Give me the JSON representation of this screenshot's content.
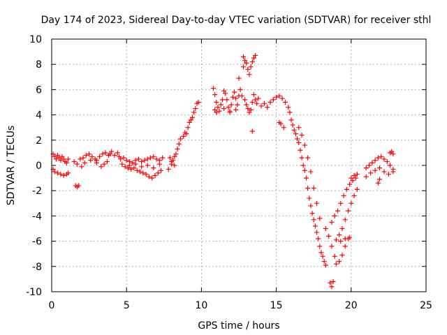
{
  "chart_data": {
    "type": "scatter",
    "title": "Day 174 of 2023, Sidereal Day-to-day VTEC variation (SDTVAR) for receiver sthl",
    "xlabel": "GPS time / hours",
    "ylabel": "SDTVAR / TECUs",
    "xlim": [
      0,
      25
    ],
    "ylim": [
      -10,
      10
    ],
    "xticks": [
      0,
      5,
      10,
      15,
      20,
      25
    ],
    "yticks": [
      -10,
      -8,
      -6,
      -4,
      -2,
      0,
      2,
      4,
      6,
      8,
      10
    ],
    "xtick_labels": [
      "0",
      "5",
      "10",
      "15",
      "20",
      "25"
    ],
    "ytick_labels": [
      "-10",
      "-8",
      "-6",
      "-4",
      "-2",
      "0",
      "2",
      "4",
      "6",
      "8",
      "10"
    ],
    "grid": true,
    "marker": "+",
    "color": "#ff0000",
    "series": [
      {
        "name": "sthl",
        "points": [
          [
            0.1,
            0.9
          ],
          [
            0.2,
            0.7
          ],
          [
            0.3,
            0.5
          ],
          [
            0.4,
            0.8
          ],
          [
            0.5,
            0.6
          ],
          [
            0.6,
            0.4
          ],
          [
            0.7,
            0.7
          ],
          [
            0.8,
            0.5
          ],
          [
            0.9,
            0.3
          ],
          [
            1.0,
            0.2
          ],
          [
            1.1,
            0.5
          ],
          [
            0.1,
            -0.3
          ],
          [
            0.2,
            -0.5
          ],
          [
            0.4,
            -0.6
          ],
          [
            0.6,
            -0.7
          ],
          [
            0.8,
            -0.8
          ],
          [
            1.0,
            -0.7
          ],
          [
            1.1,
            -0.6
          ],
          [
            1.6,
            -1.6
          ],
          [
            1.7,
            -1.7
          ],
          [
            1.8,
            -1.6
          ],
          [
            1.5,
            0.3
          ],
          [
            1.7,
            0.1
          ],
          [
            1.9,
            0.5
          ],
          [
            2.1,
            0.6
          ],
          [
            2.3,
            0.8
          ],
          [
            2.5,
            0.9
          ],
          [
            2.7,
            0.7
          ],
          [
            2.9,
            0.5
          ],
          [
            3.0,
            0.4
          ],
          [
            3.2,
            0.7
          ],
          [
            3.4,
            0.9
          ],
          [
            3.6,
            1.0
          ],
          [
            3.8,
            0.8
          ],
          [
            2.0,
            -0.1
          ],
          [
            2.2,
            0.2
          ],
          [
            2.6,
            0.4
          ],
          [
            3.0,
            0.2
          ],
          [
            3.3,
            -0.1
          ],
          [
            3.5,
            0.1
          ],
          [
            3.7,
            0.3
          ],
          [
            3.9,
            0.9
          ],
          [
            4.0,
            1.1
          ],
          [
            4.2,
            0.8
          ],
          [
            4.4,
            1.0
          ],
          [
            4.5,
            0.7
          ],
          [
            4.6,
            0.5
          ],
          [
            4.8,
            0.6
          ],
          [
            5.0,
            0.4
          ],
          [
            5.2,
            0.3
          ],
          [
            5.4,
            0.2
          ],
          [
            5.6,
            0.4
          ],
          [
            5.8,
            0.5
          ],
          [
            6.0,
            0.3
          ],
          [
            6.2,
            0.4
          ],
          [
            6.4,
            0.5
          ],
          [
            6.6,
            0.6
          ],
          [
            6.8,
            0.7
          ],
          [
            7.0,
            0.5
          ],
          [
            7.2,
            0.4
          ],
          [
            7.4,
            0.6
          ],
          [
            4.7,
            0.1
          ],
          [
            4.9,
            -0.1
          ],
          [
            5.1,
            -0.2
          ],
          [
            5.3,
            -0.3
          ],
          [
            5.5,
            -0.2
          ],
          [
            5.7,
            -0.4
          ],
          [
            5.9,
            -0.5
          ],
          [
            6.1,
            -0.6
          ],
          [
            6.3,
            -0.7
          ],
          [
            6.5,
            -0.9
          ],
          [
            6.7,
            -1.0
          ],
          [
            6.9,
            -0.8
          ],
          [
            7.1,
            -0.6
          ],
          [
            7.3,
            -0.4
          ],
          [
            5.2,
            0.0
          ],
          [
            5.6,
            0.1
          ],
          [
            6.0,
            -0.1
          ],
          [
            6.4,
            0.0
          ],
          [
            6.8,
            -0.2
          ],
          [
            7.2,
            0.1
          ],
          [
            7.8,
            -0.3
          ],
          [
            8.0,
            0.1
          ],
          [
            8.1,
            0.4
          ],
          [
            8.2,
            0.7
          ],
          [
            8.3,
            0.9
          ],
          [
            8.4,
            1.3
          ],
          [
            8.5,
            1.7
          ],
          [
            8.6,
            2.1
          ],
          [
            7.9,
            0.6
          ],
          [
            8.0,
            0.3
          ],
          [
            8.2,
            0.0
          ],
          [
            8.8,
            2.3
          ],
          [
            8.9,
            2.6
          ],
          [
            9.0,
            2.5
          ],
          [
            9.1,
            3.0
          ],
          [
            9.2,
            3.4
          ],
          [
            9.3,
            3.6
          ],
          [
            9.4,
            3.8
          ],
          [
            9.5,
            4.2
          ],
          [
            9.6,
            4.5
          ],
          [
            9.7,
            4.9
          ],
          [
            9.8,
            5.0
          ],
          [
            10.8,
            6.1
          ],
          [
            10.9,
            5.6
          ],
          [
            11.0,
            5.0
          ],
          [
            11.1,
            4.6
          ],
          [
            11.2,
            4.3
          ],
          [
            11.3,
            4.8
          ],
          [
            11.4,
            5.2
          ],
          [
            11.5,
            5.9
          ],
          [
            11.6,
            5.7
          ],
          [
            11.7,
            5.2
          ],
          [
            11.8,
            4.6
          ],
          [
            11.9,
            4.3
          ],
          [
            12.0,
            4.8
          ],
          [
            12.1,
            5.4
          ],
          [
            12.2,
            5.8
          ],
          [
            12.3,
            5.3
          ],
          [
            12.4,
            4.8
          ],
          [
            12.5,
            5.5
          ],
          [
            12.6,
            6.0
          ],
          [
            12.7,
            5.5
          ],
          [
            10.9,
            4.4
          ],
          [
            11.0,
            4.2
          ],
          [
            11.5,
            4.5
          ],
          [
            11.9,
            4.2
          ],
          [
            12.3,
            4.4
          ],
          [
            12.8,
            7.8
          ],
          [
            12.9,
            8.3
          ],
          [
            13.0,
            8.1
          ],
          [
            13.1,
            7.6
          ],
          [
            13.2,
            7.2
          ],
          [
            13.3,
            7.8
          ],
          [
            13.4,
            8.2
          ],
          [
            13.5,
            8.5
          ],
          [
            13.6,
            8.7
          ],
          [
            12.5,
            6.9
          ],
          [
            12.8,
            8.6
          ],
          [
            12.9,
            5.2
          ],
          [
            13.0,
            4.8
          ],
          [
            13.1,
            4.5
          ],
          [
            13.2,
            4.2
          ],
          [
            13.3,
            4.4
          ],
          [
            13.4,
            5.0
          ],
          [
            13.5,
            5.6
          ],
          [
            13.6,
            5.2
          ],
          [
            13.7,
            4.9
          ],
          [
            13.8,
            5.3
          ],
          [
            13.4,
            2.7
          ],
          [
            14.0,
            4.7
          ],
          [
            14.2,
            4.9
          ],
          [
            14.4,
            4.6
          ],
          [
            14.6,
            5.0
          ],
          [
            14.8,
            5.2
          ],
          [
            15.0,
            5.4
          ],
          [
            15.2,
            5.5
          ],
          [
            15.4,
            5.3
          ],
          [
            15.6,
            5.0
          ],
          [
            15.8,
            4.6
          ],
          [
            15.2,
            3.4
          ],
          [
            15.3,
            3.3
          ],
          [
            15.5,
            3.0
          ],
          [
            15.9,
            4.2
          ],
          [
            16.0,
            3.6
          ],
          [
            16.1,
            3.2
          ],
          [
            16.2,
            2.8
          ],
          [
            16.3,
            2.5
          ],
          [
            16.4,
            2.1
          ],
          [
            16.5,
            1.8
          ],
          [
            16.6,
            1.2
          ],
          [
            16.7,
            0.6
          ],
          [
            16.8,
            0.0
          ],
          [
            16.9,
            -0.4
          ],
          [
            17.0,
            -1.0
          ],
          [
            17.1,
            -1.8
          ],
          [
            17.2,
            -2.6
          ],
          [
            17.3,
            -3.2
          ],
          [
            17.4,
            -3.8
          ],
          [
            17.5,
            -4.3
          ],
          [
            17.6,
            -4.8
          ],
          [
            17.7,
            -5.3
          ],
          [
            17.8,
            -5.8
          ],
          [
            17.9,
            -6.4
          ],
          [
            18.0,
            -6.9
          ],
          [
            18.1,
            -7.2
          ],
          [
            18.2,
            -7.6
          ],
          [
            18.3,
            -7.9
          ],
          [
            16.5,
            3.0
          ],
          [
            16.7,
            2.4
          ],
          [
            16.9,
            1.6
          ],
          [
            17.1,
            0.6
          ],
          [
            17.3,
            -0.5
          ],
          [
            17.5,
            -1.8
          ],
          [
            17.7,
            -3.0
          ],
          [
            17.9,
            -4.2
          ],
          [
            18.3,
            -5.0
          ],
          [
            18.5,
            -5.6
          ],
          [
            18.7,
            -6.4
          ],
          [
            18.9,
            -7.2
          ],
          [
            19.0,
            -7.8
          ],
          [
            19.2,
            -7.6
          ],
          [
            19.4,
            -7.1
          ],
          [
            19.6,
            -6.4
          ],
          [
            19.8,
            -5.8
          ],
          [
            18.6,
            -9.3
          ],
          [
            18.7,
            -9.6
          ],
          [
            18.8,
            -9.2
          ],
          [
            18.7,
            -4.5
          ],
          [
            18.9,
            -4.0
          ],
          [
            19.1,
            -3.6
          ],
          [
            19.3,
            -3.0
          ],
          [
            19.5,
            -2.4
          ],
          [
            19.7,
            -1.9
          ],
          [
            19.9,
            -1.5
          ],
          [
            20.1,
            -1.2
          ],
          [
            20.3,
            -1.0
          ],
          [
            19.0,
            -5.9
          ],
          [
            19.2,
            -5.5
          ],
          [
            19.4,
            -5.0
          ],
          [
            19.6,
            -4.3
          ],
          [
            19.8,
            -3.6
          ],
          [
            20.0,
            -3.0
          ],
          [
            20.2,
            -2.4
          ],
          [
            20.4,
            -1.9
          ],
          [
            19.3,
            -6.0
          ],
          [
            19.6,
            -5.8
          ],
          [
            19.9,
            -5.7
          ],
          [
            20.0,
            -1.0
          ],
          [
            20.2,
            -0.8
          ],
          [
            20.4,
            -0.7
          ],
          [
            21.0,
            -0.2
          ],
          [
            21.2,
            0.0
          ],
          [
            21.4,
            0.2
          ],
          [
            21.6,
            0.4
          ],
          [
            21.8,
            0.6
          ],
          [
            22.0,
            0.7
          ],
          [
            22.2,
            0.5
          ],
          [
            22.4,
            0.3
          ],
          [
            22.6,
            0.0
          ],
          [
            22.8,
            -0.3
          ],
          [
            21.0,
            -0.9
          ],
          [
            21.3,
            -0.6
          ],
          [
            21.6,
            -0.4
          ],
          [
            21.9,
            -0.2
          ],
          [
            22.2,
            -0.5
          ],
          [
            22.5,
            -0.7
          ],
          [
            22.8,
            -0.5
          ],
          [
            21.8,
            -1.4
          ],
          [
            21.9,
            -1.1
          ],
          [
            22.6,
            1.0
          ],
          [
            22.7,
            1.1
          ],
          [
            22.8,
            0.9
          ]
        ]
      }
    ]
  }
}
